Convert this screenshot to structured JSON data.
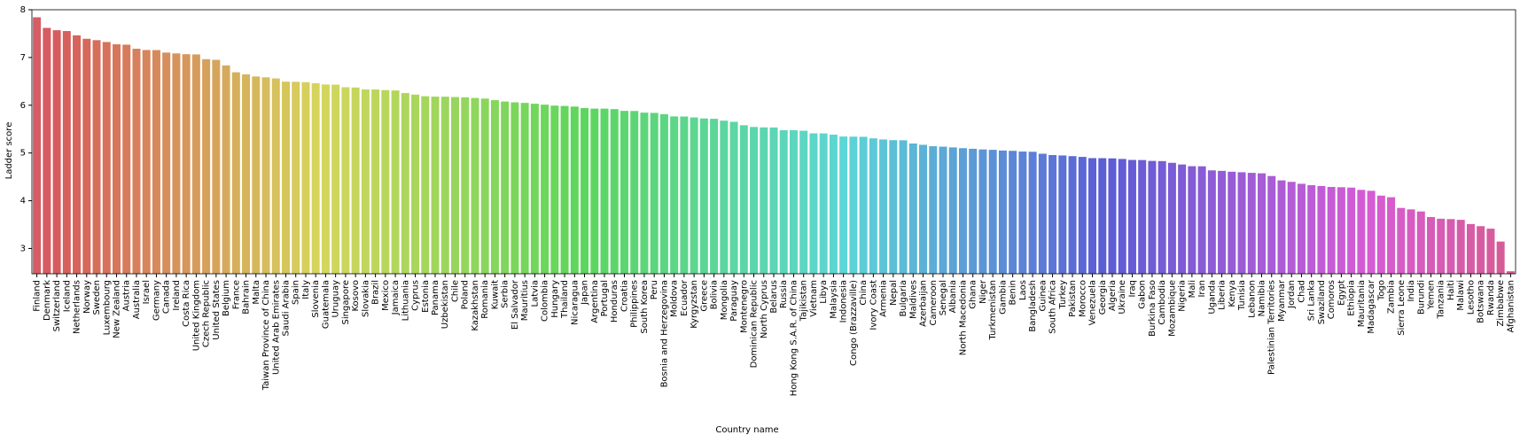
{
  "chart_data": {
    "type": "bar",
    "xlabel": "Country name",
    "ylabel": "Ladder score",
    "palette": "husl",
    "categories": [
      "Finland",
      "Denmark",
      "Switzerland",
      "Iceland",
      "Netherlands",
      "Norway",
      "Sweden",
      "Luxembourg",
      "New Zealand",
      "Austria",
      "Australia",
      "Israel",
      "Germany",
      "Canada",
      "Ireland",
      "Costa Rica",
      "United Kingdom",
      "Czech Republic",
      "United States",
      "Belgium",
      "France",
      "Bahrain",
      "Malta",
      "Taiwan Province of China",
      "United Arab Emirates",
      "Saudi Arabia",
      "Spain",
      "Italy",
      "Slovenia",
      "Guatemala",
      "Uruguay",
      "Singapore",
      "Kosovo",
      "Slovakia",
      "Brazil",
      "Mexico",
      "Jamaica",
      "Lithuania",
      "Cyprus",
      "Estonia",
      "Panama",
      "Uzbekistan",
      "Chile",
      "Poland",
      "Kazakhstan",
      "Romania",
      "Kuwait",
      "Serbia",
      "El Salvador",
      "Mauritius",
      "Latvia",
      "Colombia",
      "Hungary",
      "Thailand",
      "Nicaragua",
      "Japan",
      "Argentina",
      "Portugal",
      "Honduras",
      "Croatia",
      "Philippines",
      "South Korea",
      "Peru",
      "Bosnia and Herzegovina",
      "Moldova",
      "Ecuador",
      "Kyrgyzstan",
      "Greece",
      "Bolivia",
      "Mongolia",
      "Paraguay",
      "Montenegro",
      "Dominican Republic",
      "North Cyprus",
      "Belarus",
      "Russia",
      "Hong Kong S.A.R. of China",
      "Tajikistan",
      "Vietnam",
      "Libya",
      "Malaysia",
      "Indonesia",
      "Congo (Brazzaville)",
      "China",
      "Ivory Coast",
      "Armenia",
      "Nepal",
      "Bulgaria",
      "Maldives",
      "Azerbaijan",
      "Cameroon",
      "Senegal",
      "Albania",
      "North Macedonia",
      "Ghana",
      "Niger",
      "Turkmenistan",
      "Gambia",
      "Benin",
      "Laos",
      "Bangladesh",
      "Guinea",
      "South Africa",
      "Turkey",
      "Pakistan",
      "Morocco",
      "Venezuela",
      "Georgia",
      "Algeria",
      "Ukraine",
      "Iraq",
      "Gabon",
      "Burkina Faso",
      "Cambodia",
      "Mozambique",
      "Nigeria",
      "Mali",
      "Iran",
      "Uganda",
      "Liberia",
      "Kenya",
      "Tunisia",
      "Lebanon",
      "Namibia",
      "Palestinian Territories",
      "Myanmar",
      "Jordan",
      "Chad",
      "Sri Lanka",
      "Swaziland",
      "Comoros",
      "Egypt",
      "Ethiopia",
      "Mauritania",
      "Madagascar",
      "Togo",
      "Zambia",
      "Sierra Leone",
      "India",
      "Burundi",
      "Yemen",
      "Tanzania",
      "Haiti",
      "Malawi",
      "Lesotho",
      "Botswana",
      "Rwanda",
      "Zimbabwe",
      "Afghanistan"
    ],
    "values": [
      7.842,
      7.62,
      7.571,
      7.554,
      7.464,
      7.392,
      7.363,
      7.324,
      7.277,
      7.268,
      7.183,
      7.157,
      7.155,
      7.103,
      7.085,
      7.069,
      7.064,
      6.965,
      6.951,
      6.834,
      6.69,
      6.647,
      6.602,
      6.584,
      6.561,
      6.494,
      6.491,
      6.483,
      6.461,
      6.435,
      6.431,
      6.377,
      6.372,
      6.331,
      6.33,
      6.317,
      6.309,
      6.255,
      6.223,
      6.189,
      6.18,
      6.179,
      6.172,
      6.166,
      6.152,
      6.14,
      6.106,
      6.078,
      6.061,
      6.049,
      6.032,
      6.012,
      5.992,
      5.985,
      5.972,
      5.94,
      5.929,
      5.929,
      5.919,
      5.882,
      5.88,
      5.845,
      5.84,
      5.813,
      5.766,
      5.764,
      5.744,
      5.723,
      5.716,
      5.677,
      5.653,
      5.581,
      5.545,
      5.536,
      5.534,
      5.477,
      5.477,
      5.466,
      5.411,
      5.41,
      5.384,
      5.345,
      5.342,
      5.339,
      5.306,
      5.283,
      5.269,
      5.266,
      5.198,
      5.171,
      5.142,
      5.132,
      5.117,
      5.101,
      5.088,
      5.074,
      5.066,
      5.051,
      5.045,
      5.03,
      5.025,
      4.984,
      4.956,
      4.948,
      4.934,
      4.918,
      4.892,
      4.891,
      4.887,
      4.875,
      4.854,
      4.852,
      4.834,
      4.83,
      4.794,
      4.759,
      4.723,
      4.721,
      4.636,
      4.625,
      4.607,
      4.596,
      4.584,
      4.574,
      4.517,
      4.426,
      4.395,
      4.355,
      4.325,
      4.308,
      4.289,
      4.283,
      4.275,
      4.227,
      4.208,
      4.107,
      4.073,
      3.849,
      3.819,
      3.775,
      3.658,
      3.623,
      3.615,
      3.6,
      3.512,
      3.467,
      3.415,
      3.145,
      2.523
    ],
    "ylim": [
      2.47,
      8
    ],
    "yticks": [
      3,
      4,
      5,
      6,
      7,
      8
    ]
  }
}
